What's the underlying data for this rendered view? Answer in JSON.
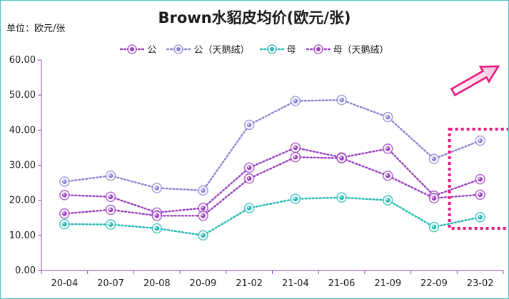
{
  "chart_data": {
    "type": "line",
    "title": "Brown水貂皮均价(欧元/张)",
    "unit_label": "单位：欧元/张",
    "categories": [
      "20-04",
      "20-07",
      "20-08",
      "20-09",
      "21-02",
      "21-04",
      "21-06",
      "21-09",
      "22-09",
      "23-02"
    ],
    "ylim": [
      0,
      60
    ],
    "yticks": [
      "0.00",
      "10.00",
      "20.00",
      "30.00",
      "40.00",
      "50.00",
      "60.00"
    ],
    "grid": false,
    "legend_position": "top",
    "series": [
      {
        "name": "公",
        "color": "#9b3fc0",
        "values": [
          21.5,
          21.0,
          16.5,
          17.8,
          29.3,
          35.0,
          32.2,
          34.7,
          21.3,
          26.0
        ]
      },
      {
        "name": "公（天鹅绒）",
        "color": "#8a86d6",
        "values": [
          25.3,
          27.0,
          23.5,
          22.8,
          41.5,
          48.3,
          48.6,
          43.7,
          31.8,
          37.0
        ]
      },
      {
        "name": "母",
        "color": "#22b8b4",
        "values": [
          13.2,
          13.1,
          12.0,
          10.0,
          17.8,
          20.4,
          20.8,
          20.0,
          12.4,
          15.2
        ]
      },
      {
        "name": "母（天鹅绒）",
        "color": "#9b3fc0",
        "values": [
          16.2,
          17.3,
          15.6,
          15.6,
          26.2,
          32.3,
          32.0,
          27.0,
          20.6,
          21.6
        ]
      }
    ]
  },
  "annotation": {
    "highlight_category": "23-02",
    "color": "#e5197e"
  }
}
